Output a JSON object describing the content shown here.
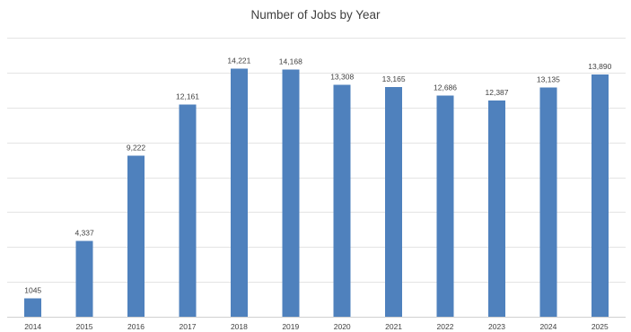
{
  "chart_data": {
    "type": "bar",
    "title": "Number of Jobs by Year",
    "xlabel": "",
    "ylabel": "",
    "categories": [
      "2014",
      "2015",
      "2016",
      "2017",
      "2018",
      "2019",
      "2020",
      "2021",
      "2022",
      "2023",
      "2024",
      "2025"
    ],
    "values": [
      1045,
      4337,
      9222,
      12161,
      14221,
      14168,
      13308,
      13165,
      12686,
      12387,
      13135,
      13890
    ],
    "data_labels": [
      "1045",
      "4,337",
      "9,222",
      "12,161",
      "14,221",
      "14,168",
      "13,308",
      "13,165",
      "12,686",
      "12,387",
      "13,135",
      "13,890"
    ],
    "ylim": [
      0,
      16000
    ],
    "gridline_step": 2000,
    "grid": true,
    "legend": "none",
    "bar_color": "#4f81bd",
    "gridline_color": "#e4e4e4",
    "text_color": "#404040"
  }
}
